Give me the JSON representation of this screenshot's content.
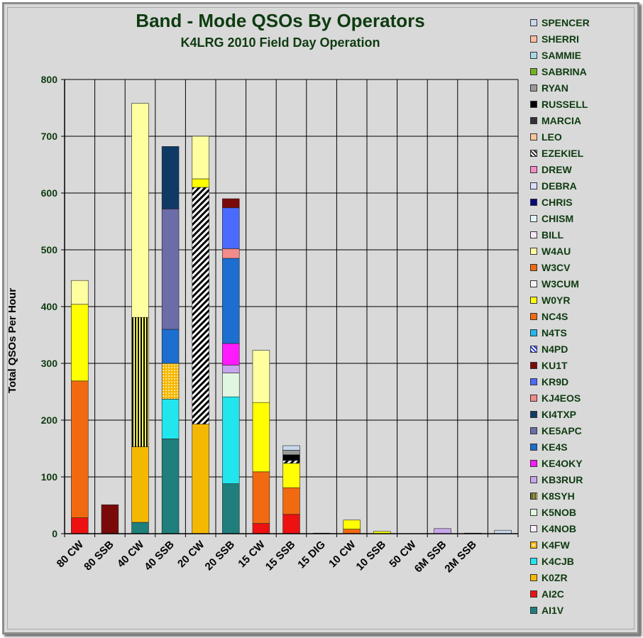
{
  "chart_data": {
    "type": "bar",
    "stacked": true,
    "title": "Band - Mode QSOs By Operators",
    "subtitle": "K4LRG 2010 Field Day Operation",
    "ylabel": "Total QSOs Per Hour",
    "ylim": [
      0,
      800
    ],
    "yticks": [
      "0",
      "100",
      "200",
      "300",
      "400",
      "500",
      "600",
      "700",
      "800"
    ],
    "grid": true,
    "legend_position": "right",
    "categories": [
      "80 CW",
      "80 SSB",
      "40 CW",
      "40 SSB",
      "20 CW",
      "20 SSB",
      "15 CW",
      "15 SSB",
      "15 DIG",
      "10 CW",
      "10 SSB",
      "50 CW",
      "6M SSB",
      "2M SSB",
      ""
    ],
    "series": [
      {
        "name": "AI1V",
        "color": "#1f7f7c",
        "values": [
          0,
          0,
          20,
          167,
          0,
          88,
          0,
          0,
          0,
          0,
          0,
          0,
          0,
          0,
          0
        ]
      },
      {
        "name": "AI2C",
        "color": "#ee1111",
        "values": [
          28,
          0,
          0,
          0,
          0,
          0,
          18,
          34,
          0,
          0,
          0,
          0,
          0,
          0,
          0
        ]
      },
      {
        "name": "K0ZR",
        "color": "#f5b800",
        "values": [
          0,
          0,
          133,
          0,
          193,
          0,
          0,
          0,
          0,
          0,
          0,
          0,
          0,
          0,
          0
        ]
      },
      {
        "name": "K4CJB",
        "color": "#22e6ee",
        "values": [
          0,
          0,
          0,
          70,
          0,
          153,
          0,
          0,
          0,
          0,
          0,
          0,
          0,
          0,
          0
        ]
      },
      {
        "name": "K4FW",
        "color": "#f8d89a",
        "pattern": "dots",
        "values": [
          0,
          0,
          0,
          63,
          0,
          0,
          0,
          0,
          0,
          0,
          0,
          0,
          0,
          0,
          0
        ]
      },
      {
        "name": "K4NOB",
        "color": "#f0e0f0",
        "pattern": "diag",
        "values": [
          0,
          0,
          0,
          0,
          0,
          0,
          0,
          0,
          0,
          0,
          0,
          0,
          0,
          0,
          0
        ]
      },
      {
        "name": "K5NOB",
        "color": "#e0f6e0",
        "values": [
          0,
          0,
          0,
          0,
          0,
          42,
          0,
          0,
          0,
          0,
          0,
          0,
          0,
          0,
          0
        ]
      },
      {
        "name": "K8SYH",
        "color": "#c8c800",
        "pattern": "vertical",
        "values": [
          0,
          0,
          228,
          0,
          0,
          0,
          0,
          0,
          0,
          0,
          0,
          0,
          0,
          0,
          0
        ]
      },
      {
        "name": "KB3RUR",
        "color": "#c7a6ec",
        "values": [
          0,
          0,
          0,
          0,
          0,
          14,
          0,
          0,
          0,
          0,
          0,
          0,
          9,
          0,
          0
        ]
      },
      {
        "name": "KE4OKY",
        "color": "#ff1aff",
        "values": [
          0,
          0,
          0,
          0,
          0,
          38,
          0,
          0,
          0,
          0,
          0,
          0,
          0,
          0,
          0
        ]
      },
      {
        "name": "KE4S",
        "color": "#1c6ed0",
        "values": [
          0,
          0,
          0,
          60,
          0,
          150,
          0,
          0,
          0,
          0,
          0,
          0,
          0,
          0,
          0
        ]
      },
      {
        "name": "KE5APC",
        "color": "#6c6ca8",
        "values": [
          0,
          0,
          0,
          212,
          0,
          0,
          0,
          0,
          0,
          0,
          0,
          0,
          0,
          0,
          0
        ]
      },
      {
        "name": "KI4TXP",
        "color": "#103a66",
        "values": [
          0,
          0,
          0,
          110,
          0,
          0,
          0,
          0,
          0,
          0,
          0,
          0,
          0,
          0,
          0
        ]
      },
      {
        "name": "KJ4EOS",
        "color": "#f38b8b",
        "values": [
          0,
          0,
          0,
          0,
          0,
          17,
          0,
          0,
          0,
          0,
          0,
          0,
          0,
          0,
          0
        ]
      },
      {
        "name": "KR9D",
        "color": "#4a6bff",
        "values": [
          0,
          0,
          0,
          0,
          0,
          72,
          0,
          0,
          0,
          0,
          0,
          0,
          0,
          0,
          0
        ]
      },
      {
        "name": "KU1T",
        "color": "#7a0a0a",
        "values": [
          0,
          51,
          0,
          0,
          0,
          16,
          0,
          0,
          0,
          0,
          0,
          0,
          0,
          0,
          0
        ]
      },
      {
        "name": "N4PD",
        "color": "#1a2ed8",
        "pattern": "diag",
        "values": [
          0,
          0,
          0,
          0,
          417,
          0,
          0,
          0,
          0,
          0,
          0,
          0,
          0,
          0,
          0
        ]
      },
      {
        "name": "N4TS",
        "color": "#22b8ee",
        "values": [
          0,
          0,
          0,
          0,
          0,
          0,
          0,
          0,
          0,
          0,
          0,
          0,
          0,
          0,
          0
        ]
      },
      {
        "name": "NC4S",
        "color": "#f26a10",
        "values": [
          241,
          0,
          0,
          0,
          0,
          0,
          91,
          47,
          0,
          8,
          0,
          0,
          0,
          0,
          0
        ]
      },
      {
        "name": "W0YR",
        "color": "#ffff00",
        "values": [
          135,
          0,
          0,
          0,
          15,
          0,
          122,
          43,
          0,
          16,
          4,
          0,
          0,
          0,
          0
        ]
      },
      {
        "name": "W3CUM",
        "color": "#e8e8e8",
        "pattern": "diag",
        "values": [
          0,
          0,
          0,
          0,
          0,
          0,
          0,
          0,
          0,
          0,
          0,
          0,
          0,
          0,
          0
        ]
      },
      {
        "name": "W3CV",
        "color": "#f26a10",
        "values": [
          0,
          0,
          0,
          0,
          0,
          0,
          0,
          0,
          0,
          0,
          0,
          0,
          0,
          0,
          0
        ]
      },
      {
        "name": "W4AU",
        "color": "#ffffa0",
        "values": [
          42,
          0,
          377,
          0,
          75,
          0,
          92,
          0,
          0,
          0,
          0,
          0,
          0,
          0,
          0
        ]
      },
      {
        "name": "BILL",
        "color": "#f4d0f0",
        "pattern": "diag",
        "values": [
          0,
          0,
          0,
          0,
          0,
          0,
          0,
          0,
          0,
          0,
          0,
          0,
          0,
          0,
          0
        ]
      },
      {
        "name": "CHISM",
        "color": "#e0f6f6",
        "values": [
          0,
          0,
          0,
          0,
          0,
          0,
          0,
          0,
          0,
          0,
          0,
          0,
          0,
          0,
          0
        ]
      },
      {
        "name": "CHRIS",
        "color": "#0a0a7a",
        "values": [
          0,
          0,
          0,
          0,
          0,
          0,
          0,
          0,
          0,
          0,
          0,
          0,
          0,
          0,
          0
        ]
      },
      {
        "name": "DEBRA",
        "color": "#dcdcff",
        "values": [
          0,
          0,
          0,
          0,
          0,
          0,
          0,
          0,
          0,
          0,
          0,
          0,
          0,
          0,
          0
        ]
      },
      {
        "name": "DREW",
        "color": "#f58cc8",
        "values": [
          0,
          0,
          0,
          0,
          0,
          0,
          0,
          0,
          0,
          0,
          0,
          0,
          0,
          0,
          0
        ]
      },
      {
        "name": "EZEKIEL",
        "color": "#222222",
        "pattern": "diag",
        "values": [
          0,
          0,
          0,
          0,
          0,
          0,
          0,
          5,
          0,
          0,
          0,
          0,
          0,
          0,
          0
        ]
      },
      {
        "name": "LEO",
        "color": "#f8c49a",
        "values": [
          0,
          0,
          0,
          0,
          0,
          0,
          0,
          0,
          0,
          0,
          0,
          0,
          0,
          0,
          0
        ]
      },
      {
        "name": "MARCIA",
        "color": "#333333",
        "values": [
          0,
          0,
          0,
          0,
          0,
          0,
          0,
          0,
          1,
          0,
          0,
          0,
          0,
          1,
          0
        ]
      },
      {
        "name": "RUSSELL",
        "color": "#000000",
        "values": [
          0,
          0,
          0,
          0,
          0,
          0,
          0,
          10,
          0,
          0,
          0,
          0,
          0,
          0,
          0
        ]
      },
      {
        "name": "RYAN",
        "color": "#9a9a9a",
        "values": [
          0,
          0,
          0,
          0,
          0,
          0,
          0,
          8,
          0,
          0,
          0,
          0,
          0,
          0,
          0
        ]
      },
      {
        "name": "SABRINA",
        "color": "#74b020",
        "values": [
          0,
          0,
          0,
          0,
          0,
          0,
          0,
          0,
          0,
          0,
          0,
          0,
          0,
          0,
          0
        ]
      },
      {
        "name": "SAMMIE",
        "color": "#a8d8e8",
        "values": [
          0,
          0,
          0,
          0,
          0,
          0,
          0,
          0,
          0,
          0,
          0,
          0,
          0,
          0,
          0
        ]
      },
      {
        "name": "SHERRI",
        "color": "#f8bca0",
        "values": [
          0,
          0,
          0,
          0,
          0,
          0,
          0,
          0,
          0,
          0,
          0,
          0,
          0,
          0,
          0
        ]
      },
      {
        "name": "SPENCER",
        "color": "#c8d8ec",
        "values": [
          0,
          0,
          0,
          0,
          0,
          0,
          0,
          8,
          0,
          0,
          0,
          0,
          0,
          0,
          6
        ]
      }
    ]
  }
}
